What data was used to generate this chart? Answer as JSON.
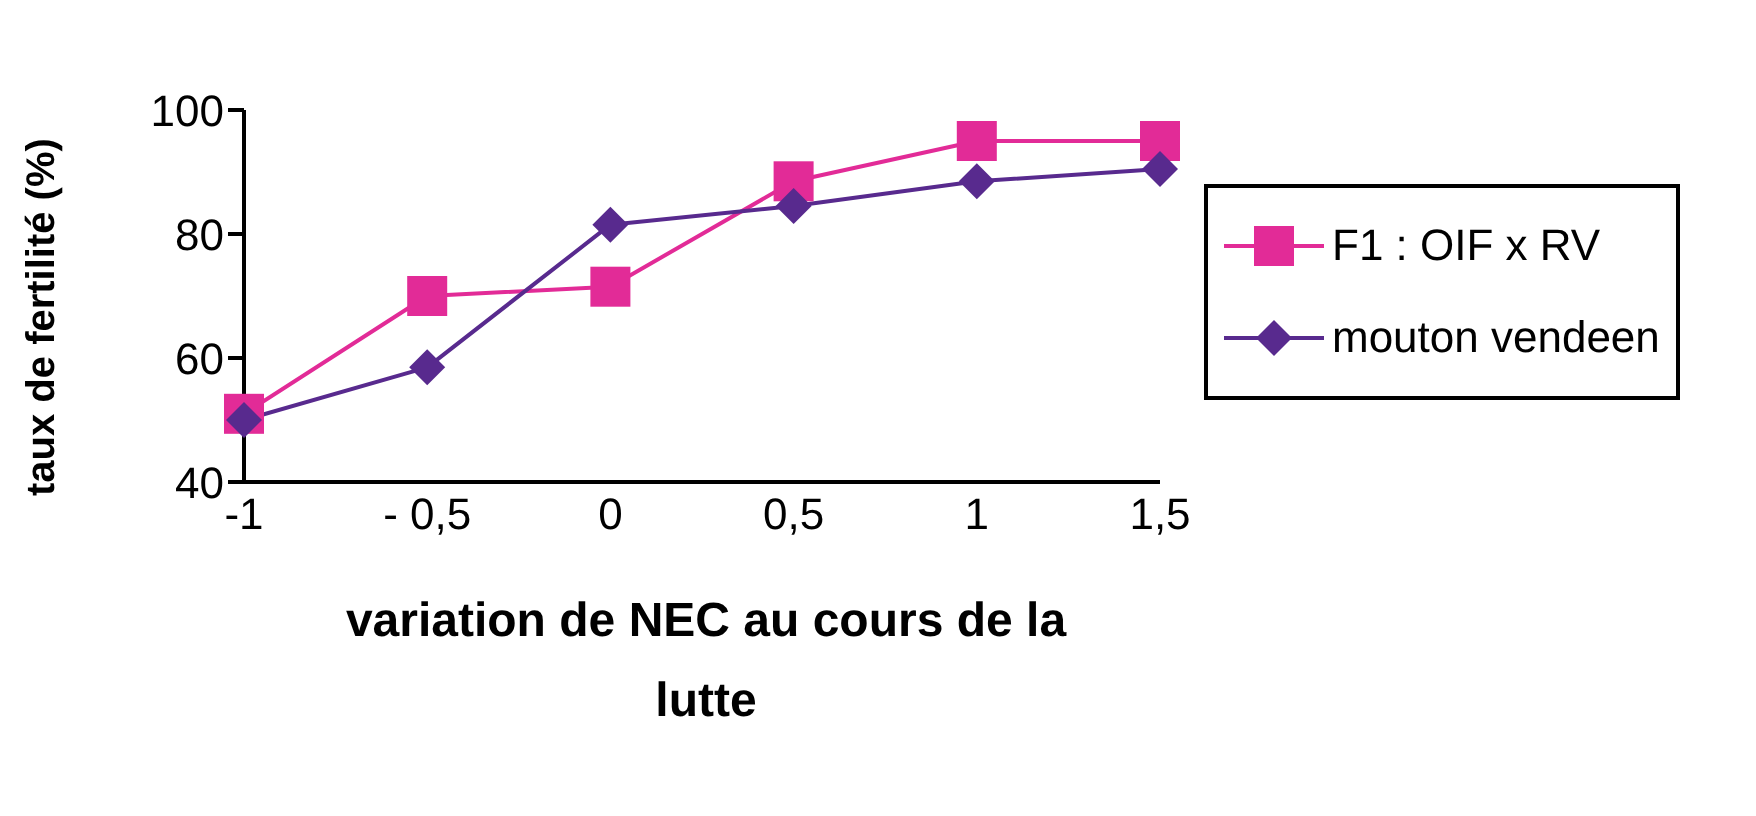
{
  "chart_data": {
    "type": "line",
    "xlabel": "variation de NEC au cours de la lutte",
    "ylabel": "taux de fertilité (%)",
    "categories": [
      "-1",
      "- 0,5",
      "0",
      "0,5",
      "1",
      "1,5"
    ],
    "series": [
      {
        "name": "F1 : OIF x RV",
        "color": "#e22b97",
        "marker": "square",
        "values": [
          51,
          70,
          71.5,
          88.5,
          95,
          95
        ]
      },
      {
        "name": "mouton vendeen",
        "color": "#582a8e",
        "marker": "diamond",
        "values": [
          50,
          58.5,
          81.5,
          84.5,
          88.5,
          90.5
        ]
      }
    ],
    "ylim": [
      40,
      100
    ],
    "yticks": [
      40,
      60,
      80,
      100
    ],
    "grid": false,
    "legend": "right",
    "line_style": "solid"
  }
}
